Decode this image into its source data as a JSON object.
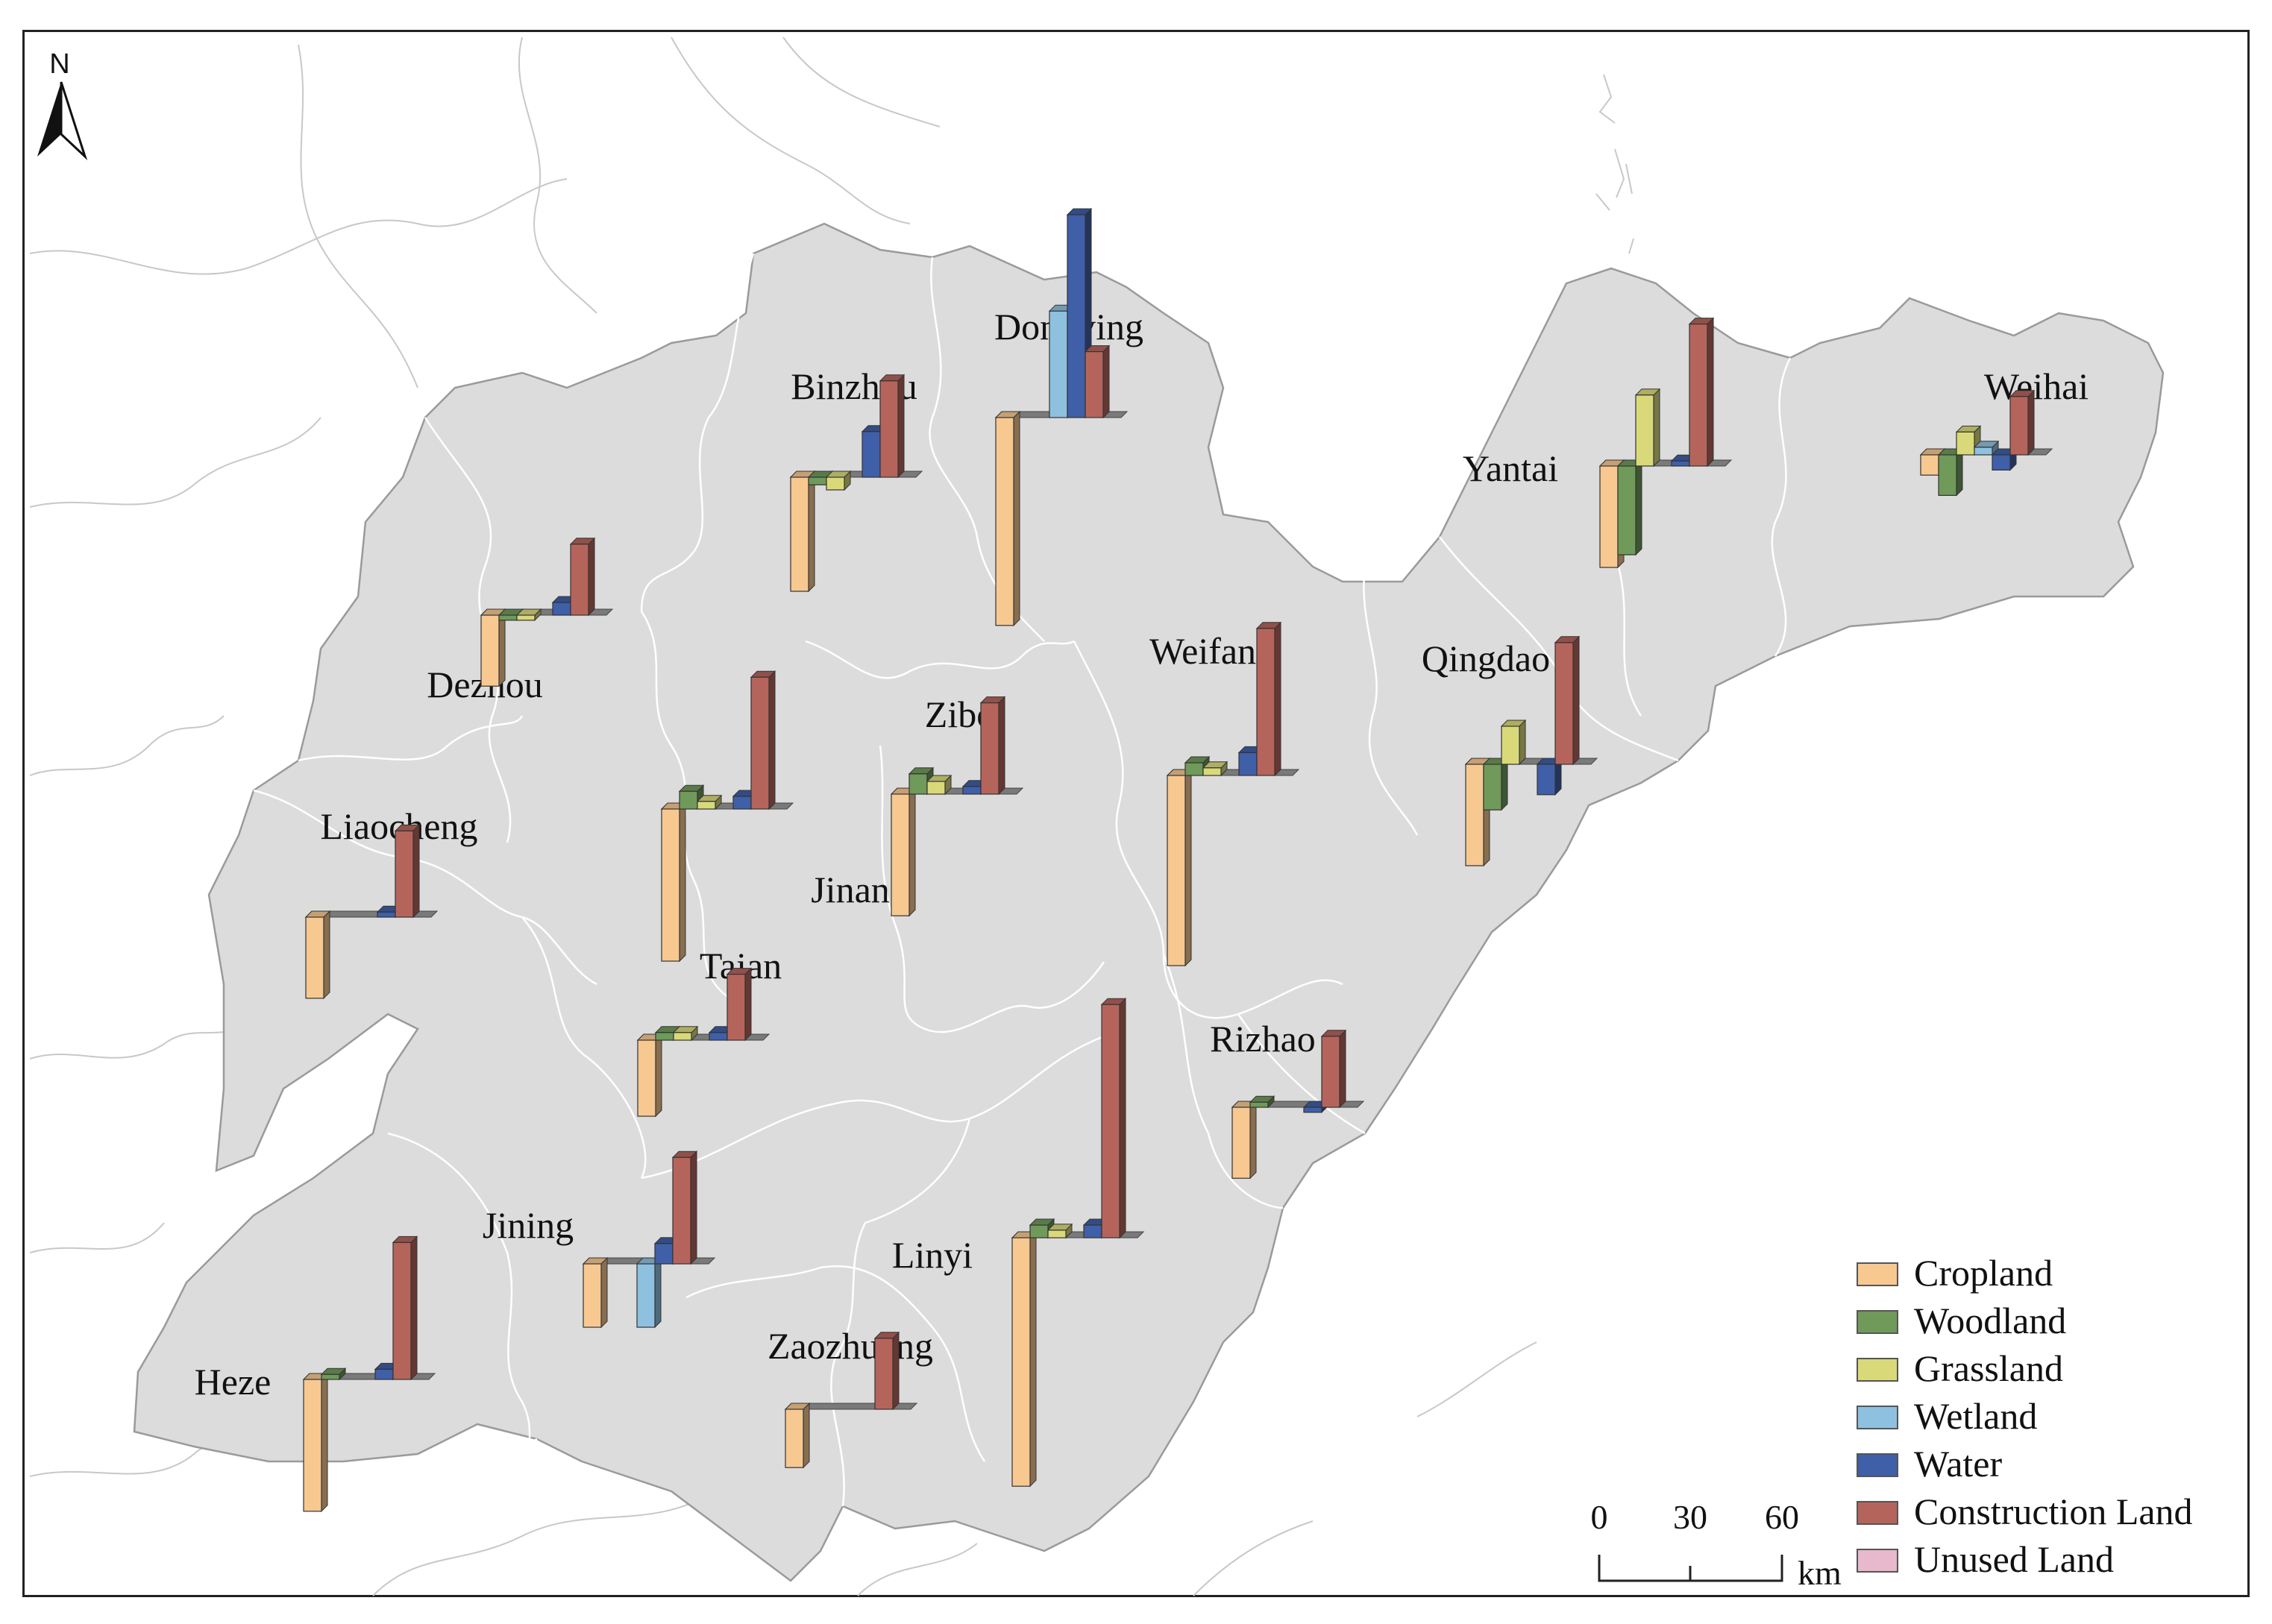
{
  "north_label": "N",
  "categories": [
    {
      "name": "Cropland",
      "color": "#f7c890"
    },
    {
      "name": "Woodland",
      "color": "#6f9a5a"
    },
    {
      "name": "Grassland",
      "color": "#d9d97a"
    },
    {
      "name": "Wetland",
      "color": "#8ec1e0"
    },
    {
      "name": "Water",
      "color": "#3f5fa8"
    },
    {
      "name": "Construction Land",
      "color": "#b5645c"
    },
    {
      "name": "Unused Land",
      "color": "#e8b8cc"
    }
  ],
  "cities": [
    {
      "name": "Binzhou",
      "values": [
        -4.5,
        -0.3,
        -0.5,
        0,
        1.8,
        3.8,
        0
      ]
    },
    {
      "name": "Dongying",
      "values": [
        -8.2,
        0,
        0,
        4.2,
        8.0,
        2.6,
        0
      ]
    },
    {
      "name": "Yantai",
      "values": [
        -4.0,
        -3.5,
        2.8,
        0,
        0.2,
        5.6,
        0
      ]
    },
    {
      "name": "Weihai",
      "values": [
        -0.8,
        -1.6,
        0.9,
        0.3,
        -0.6,
        2.3,
        0
      ]
    },
    {
      "name": "Dezhou",
      "values": [
        -2.8,
        -0.2,
        -0.2,
        0,
        0.5,
        2.8,
        0
      ]
    },
    {
      "name": "Weifang",
      "values": [
        -7.5,
        0.5,
        0.3,
        0,
        0.9,
        5.8,
        0
      ]
    },
    {
      "name": "Qingdao",
      "values": [
        -4.0,
        -1.8,
        1.5,
        0,
        -1.2,
        4.8,
        0
      ]
    },
    {
      "name": "Zibo",
      "values": [
        -4.8,
        0.8,
        0.5,
        0,
        0.3,
        3.6,
        0
      ]
    },
    {
      "name": "Jinan",
      "values": [
        -6.0,
        0.7,
        0.3,
        0,
        0.5,
        5.2,
        0
      ]
    },
    {
      "name": "Liaocheng",
      "values": [
        -3.2,
        0,
        0,
        0,
        0.2,
        3.4,
        0
      ]
    },
    {
      "name": "Taian",
      "values": [
        -3.0,
        0.3,
        0.3,
        0,
        0.3,
        2.6,
        0
      ]
    },
    {
      "name": "Rizhao",
      "values": [
        -2.8,
        0.2,
        0,
        0,
        -0.2,
        2.8,
        0
      ]
    },
    {
      "name": "Jining",
      "values": [
        -2.5,
        0,
        0,
        -2.5,
        0.8,
        4.2,
        0
      ]
    },
    {
      "name": "Linyi",
      "values": [
        -9.8,
        0.5,
        0.3,
        0,
        0.5,
        9.2,
        0
      ]
    },
    {
      "name": "Heze",
      "values": [
        -5.2,
        0.2,
        0,
        0,
        0.4,
        5.4,
        0
      ]
    },
    {
      "name": "Zaozhuang",
      "values": [
        -2.3,
        0,
        0,
        0,
        0,
        2.8,
        0
      ]
    }
  ],
  "scale": {
    "ticks": [
      "0",
      "30",
      "60"
    ],
    "unit": "km"
  }
}
